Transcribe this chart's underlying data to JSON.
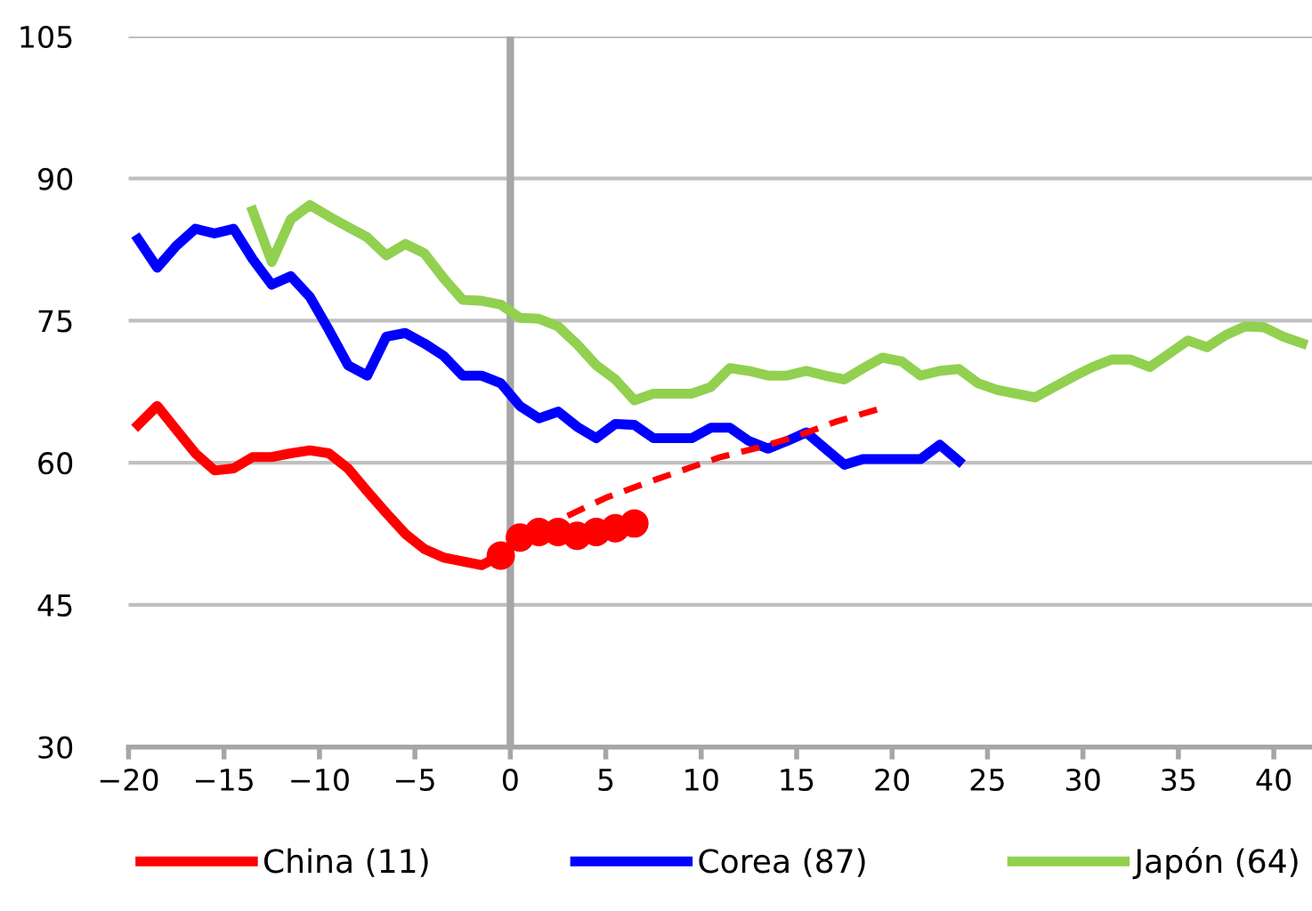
{
  "chart_data": {
    "type": "line",
    "xlim": [
      -20,
      42
    ],
    "ylim": [
      30,
      105
    ],
    "xticks": [
      {
        "value": -20,
        "label": "−20"
      },
      {
        "value": -15,
        "label": "−15"
      },
      {
        "value": -10,
        "label": "−10"
      },
      {
        "value": -5,
        "label": "−5"
      },
      0,
      5,
      10,
      15,
      20,
      25,
      30,
      35,
      40
    ],
    "yticks": [
      30,
      45,
      60,
      75,
      90,
      105
    ],
    "grid": "y",
    "legend": "bottom",
    "ref_lines": [
      {
        "axis": "x",
        "value": 0,
        "color": "#a6a6a6"
      }
    ],
    "series": [
      {
        "name": "China (11)",
        "color": "#ff0000",
        "x": [
          -19.5,
          -18.5,
          -17.5,
          -16.5,
          -15.5,
          -14.5,
          -13.5,
          -12.5,
          -11.5,
          -10.5,
          -9.5,
          -8.5,
          -7.5,
          -6.5,
          -5.5,
          -4.5,
          -3.5,
          -2.5,
          -1.5,
          -0.5,
          0.5,
          1.5,
          2.5,
          3.5,
          4.5,
          5.5,
          6.5
        ],
        "values": [
          64,
          66,
          63.5,
          61,
          59.2,
          59.4,
          60.6,
          60.6,
          61,
          61.3,
          61,
          59.4,
          57,
          54.7,
          52.5,
          50.9,
          50,
          49.6,
          49.2,
          50.2,
          52.1,
          52.7,
          52.7,
          52.3,
          52.7,
          53.1,
          53.6
        ]
      },
      {
        "name": "Corea (87)",
        "color": "#0000ff",
        "x": [
          -19.5,
          -18.5,
          -17.5,
          -16.5,
          -15.5,
          -14.5,
          -13.5,
          -12.5,
          -11.5,
          -10.5,
          -9.5,
          -8.5,
          -7.5,
          -6.5,
          -5.5,
          -4.5,
          -3.5,
          -2.5,
          -1.5,
          -0.5,
          0.5,
          1.5,
          2.5,
          3.5,
          4.5,
          5.5,
          6.5,
          7.5,
          8.5,
          9.5,
          10.5,
          11.5,
          12.5,
          13.5,
          14.5,
          15.5,
          16.5,
          17.5,
          18.5,
          19.5,
          20.5,
          21.5,
          22.5,
          23.5
        ],
        "values": [
          83.6,
          80.6,
          82.9,
          84.7,
          84.2,
          84.7,
          81.5,
          78.8,
          79.7,
          77.5,
          74,
          70.3,
          69.2,
          73.3,
          73.7,
          72.6,
          71.3,
          69.2,
          69.2,
          68.4,
          66,
          64.7,
          65.4,
          63.8,
          62.6,
          64.1,
          64,
          62.6,
          62.6,
          62.6,
          63.7,
          63.7,
          62.3,
          61.5,
          62.3,
          63.2,
          61.5,
          59.8,
          60.4,
          60.4,
          60.4,
          60.4,
          61.9,
          60.2
        ]
      },
      {
        "name": "Japón (64)",
        "color": "#92d050",
        "x": [
          -13.5,
          -12.5,
          -11.5,
          -10.5,
          -9.5,
          -8.5,
          -7.5,
          -6.5,
          -5.5,
          -4.5,
          -3.5,
          -2.5,
          -1.5,
          -0.5,
          0.5,
          1.5,
          2.5,
          3.5,
          4.5,
          5.5,
          6.5,
          7.5,
          8.5,
          9.5,
          10.5,
          11.5,
          12.5,
          13.5,
          14.5,
          15.5,
          16.5,
          17.5,
          18.5,
          19.5,
          20.5,
          21.5,
          22.5,
          23.5,
          24.5,
          25.5,
          26.5,
          27.5,
          28.5,
          29.5,
          30.5,
          31.5,
          32.5,
          33.5,
          34.5,
          35.5,
          36.5,
          37.5,
          38.5,
          39.5,
          40.5,
          41.5
        ],
        "values": [
          86.6,
          81.2,
          85.7,
          87.2,
          86,
          84.9,
          83.8,
          81.9,
          83.1,
          82.1,
          79.5,
          77.2,
          77.1,
          76.7,
          75.3,
          75.2,
          74.4,
          72.5,
          70.3,
          68.8,
          66.6,
          67.3,
          67.3,
          67.3,
          68,
          70,
          69.7,
          69.2,
          69.2,
          69.7,
          69.2,
          68.8,
          70,
          71.1,
          70.7,
          69.2,
          69.7,
          69.9,
          68.4,
          67.7,
          67.3,
          66.9,
          68,
          69.1,
          70.1,
          70.9,
          70.9,
          70.1,
          71.5,
          72.9,
          72.2,
          73.5,
          74.4,
          74.3,
          73.3,
          72.6
        ]
      },
      {
        "type": "scatter",
        "marker": "circle",
        "color": "#ff0000",
        "x": [
          -0.5,
          0.5,
          1.5,
          2.5,
          3.5,
          4.5,
          5.5,
          6.5
        ],
        "values": [
          50.2,
          52.1,
          52.7,
          52.7,
          52.3,
          52.7,
          53.1,
          53.6
        ]
      },
      {
        "type": "line",
        "line_style": "dashed",
        "color": "#ff0000",
        "x": [
          3,
          5,
          7,
          9,
          11,
          13,
          15,
          17,
          19.5
        ],
        "values": [
          54.4,
          56.3,
          57.8,
          59.2,
          60.6,
          61.6,
          62.8,
          64.3,
          65.8
        ]
      }
    ]
  }
}
